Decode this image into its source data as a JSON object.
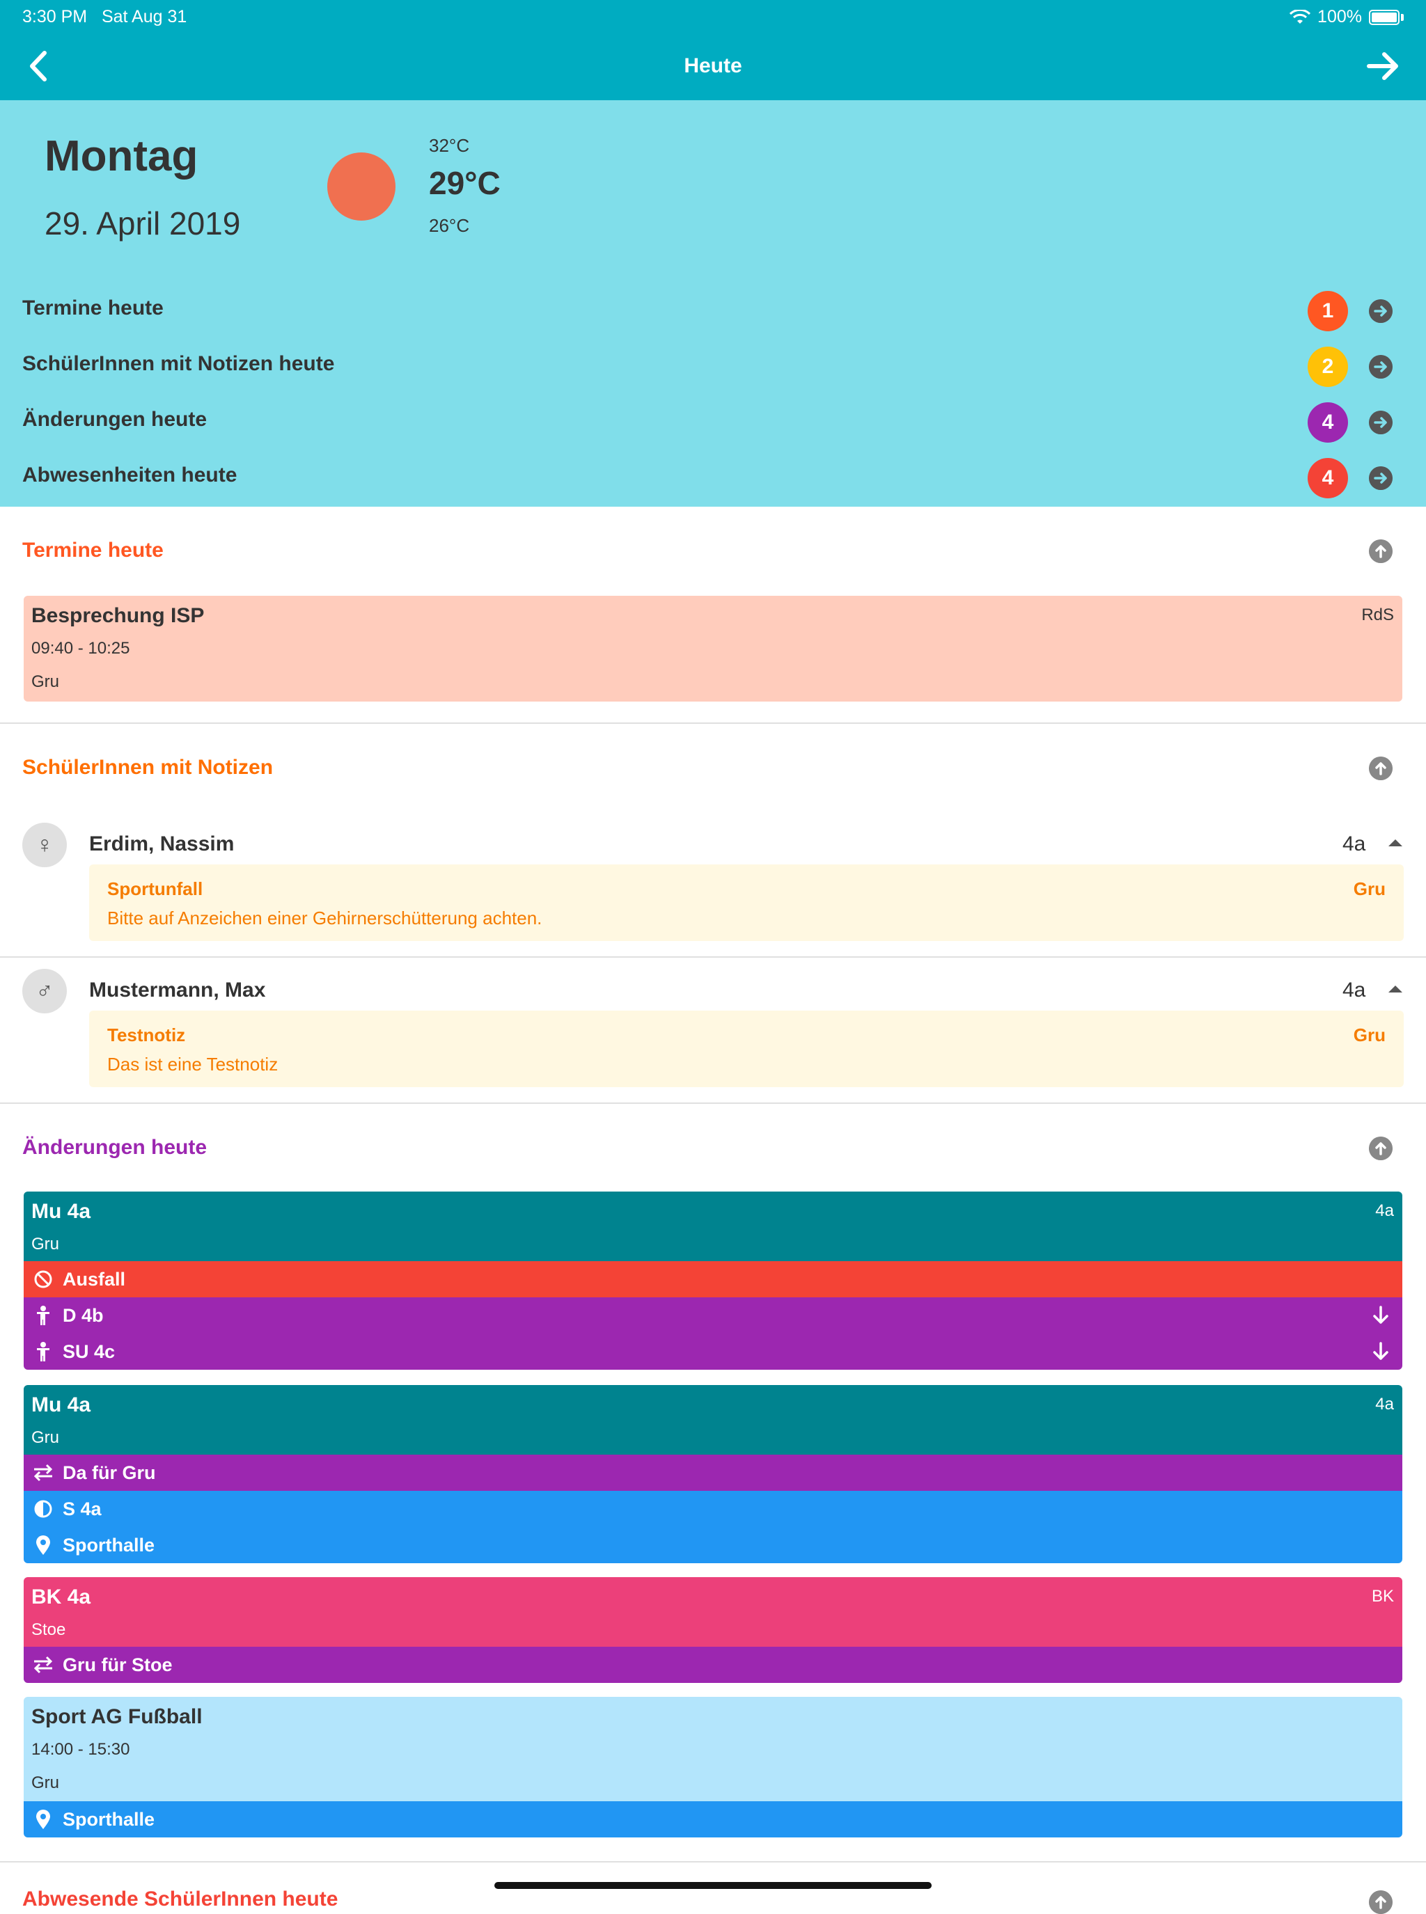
{
  "status_bar": {
    "time": "3:30 PM",
    "date": "Sat Aug 31",
    "battery": "100%"
  },
  "nav": {
    "title": "Heute",
    "back_icon": "chevron-left-icon",
    "forward_icon": "arrow-right-icon"
  },
  "summary": {
    "day": "Montag",
    "date": "29. April 2019",
    "weather": {
      "icon": "sun-icon",
      "high": "32°C",
      "current": "29°C",
      "low": "26°C"
    },
    "rows": [
      {
        "label": "Termine heute",
        "count": "1",
        "color": "#ff5722"
      },
      {
        "label": "SchülerInnen mit Notizen heute",
        "count": "2",
        "color": "#ffc107"
      },
      {
        "label": "Änderungen heute",
        "count": "4",
        "color": "#9c27b0"
      },
      {
        "label": "Abwesenheiten heute",
        "count": "4",
        "color": "#f44336"
      }
    ]
  },
  "appointments": {
    "heading": "Termine heute",
    "heading_color": "#ff5722",
    "items": [
      {
        "title": "Besprechung ISP",
        "tag": "RdS",
        "time": "09:40 - 10:25",
        "teacher": "Gru"
      }
    ]
  },
  "students": {
    "heading": "SchülerInnen mit Notizen",
    "heading_color": "#ff6f00",
    "items": [
      {
        "name": "Erdim, Nassim",
        "class": "4a",
        "gender_icon": "female-icon",
        "gender_glyph": "♀",
        "note": {
          "title": "Sportunfall",
          "author": "Gru",
          "text": "Bitte auf Anzeichen einer Gehirnerschütterung achten."
        }
      },
      {
        "name": "Mustermann, Max",
        "class": "4a",
        "gender_icon": "male-icon",
        "gender_glyph": "♂",
        "note": {
          "title": "Testnotiz",
          "author": "Gru",
          "text": "Das ist eine Testnotiz"
        }
      }
    ]
  },
  "changes": {
    "heading": "Änderungen heute",
    "heading_color": "#9c27b0",
    "lessons": [
      {
        "title": "Mu 4a",
        "tag": "4a",
        "teacher": "Gru",
        "color": "#00838f",
        "bands": [
          {
            "icon": "cancel-icon",
            "text": "Ausfall",
            "color": "#f44336"
          },
          {
            "icon": "student-icon",
            "text": "D 4b",
            "color": "#9c27b0",
            "trail": "arrow-down-icon"
          },
          {
            "icon": "student-icon",
            "text": "SU 4c",
            "color": "#9c27b0",
            "trail": "arrow-down-icon"
          }
        ]
      },
      {
        "title": "Mu 4a",
        "tag": "4a",
        "teacher": "Gru",
        "color": "#00838f",
        "bands": [
          {
            "icon": "swap-icon",
            "text": "Da für Gru",
            "color": "#9c27b0"
          },
          {
            "icon": "half-circle-icon",
            "text": "S 4a",
            "color": "#2196f3"
          },
          {
            "icon": "location-pin-icon",
            "text": "Sporthalle",
            "color": "#2196f3"
          }
        ]
      },
      {
        "title": "BK 4a",
        "tag": "BK",
        "teacher": "Stoe",
        "color": "#ec407a",
        "bands": [
          {
            "icon": "swap-icon",
            "text": "Gru für Stoe",
            "color": "#9c27b0"
          }
        ]
      },
      {
        "title": "Sport AG Fußball",
        "time": "14:00 - 15:30",
        "teacher": "Gru",
        "color": "#b3e5fc",
        "bands": [
          {
            "icon": "location-pin-icon",
            "text": "Sporthalle",
            "color": "#2196f3"
          }
        ]
      }
    ]
  },
  "absences": {
    "heading": "Abwesende SchülerInnen heute",
    "heading_color": "#f44336"
  }
}
